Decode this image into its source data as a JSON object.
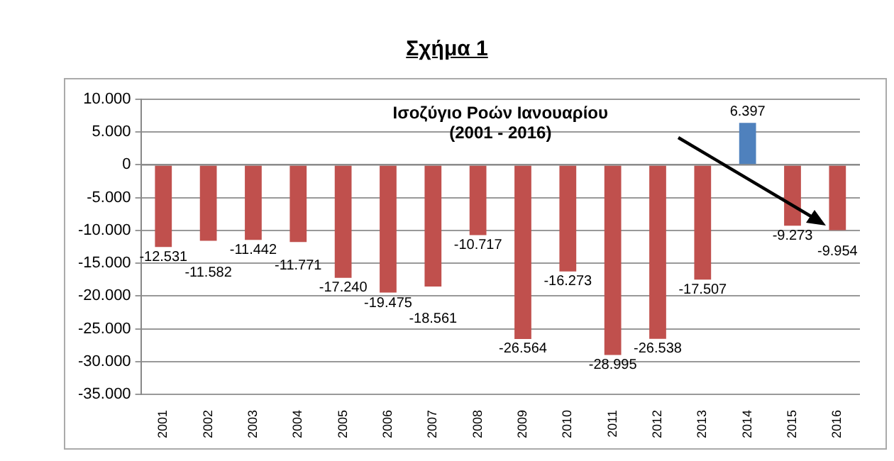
{
  "chart_data": {
    "type": "bar",
    "title": "Σχήμα 1",
    "subtitle": "Ισοζύγιο Ροών Ιανουαρίου\n(2001 - 2016)",
    "categories": [
      "2001",
      "2002",
      "2003",
      "2004",
      "2005",
      "2006",
      "2007",
      "2008",
      "2009",
      "2010",
      "2011",
      "2012",
      "2013",
      "2014",
      "2015",
      "2016"
    ],
    "values": [
      -12531,
      -11582,
      -11442,
      -11771,
      -17240,
      -19475,
      -18561,
      -10717,
      -26564,
      -16273,
      -28995,
      -26538,
      -17507,
      6397,
      -9273,
      -9954
    ],
    "colors": [
      "#c0504d",
      "#c0504d",
      "#c0504d",
      "#c0504d",
      "#c0504d",
      "#c0504d",
      "#c0504d",
      "#c0504d",
      "#c0504d",
      "#c0504d",
      "#c0504d",
      "#c0504d",
      "#c0504d",
      "#4f81bd",
      "#c0504d",
      "#c0504d"
    ],
    "value_labels": [
      "-12.531",
      "-11.582",
      "-11.442",
      "-11.771",
      "-17.240",
      "-19.475",
      "-18.561",
      "-10.717",
      "-26.564",
      "-16.273",
      "-28.995",
      "-26.538",
      "-17.507",
      "6.397",
      "-9.273",
      "-9.954"
    ],
    "ylim": [
      -35000,
      10000
    ],
    "yticks": [
      {
        "value": -35000,
        "label": "-35.000"
      },
      {
        "value": -30000,
        "label": "-30.000"
      },
      {
        "value": -25000,
        "label": "-25.000"
      },
      {
        "value": -20000,
        "label": "-20.000"
      },
      {
        "value": -15000,
        "label": "-15.000"
      },
      {
        "value": -10000,
        "label": "-10.000"
      },
      {
        "value": -5000,
        "label": "-5.000"
      },
      0,
      {
        "value": 5000,
        "label": "5.000"
      },
      {
        "value": 10000,
        "label": "10.000"
      }
    ],
    "grid": "y"
  }
}
